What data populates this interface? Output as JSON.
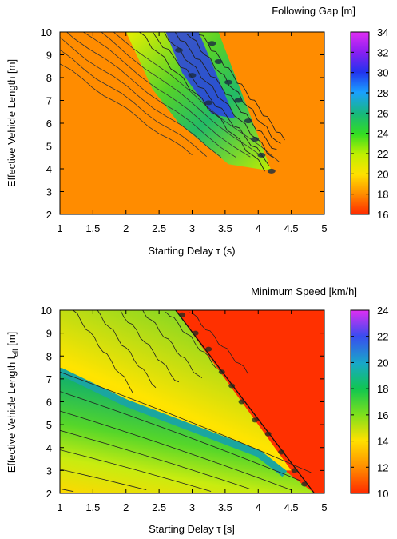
{
  "chart_data": [
    {
      "type": "heatmap",
      "title": "Following Gap [m]",
      "xlabel": "Starting Delay  τ (s)",
      "ylabel": "Effective Vehicle Length [m]",
      "xlim": [
        1,
        5
      ],
      "ylim": [
        2,
        10
      ],
      "xticks": [
        "1",
        "1.5",
        "2",
        "2.5",
        "3",
        "3.5",
        "4",
        "4.5",
        "5"
      ],
      "yticks": [
        "2",
        "3",
        "4",
        "5",
        "6",
        "7",
        "8",
        "9",
        "10"
      ],
      "colorbar": {
        "range": [
          16,
          34
        ],
        "ticks": [
          "16",
          "18",
          "20",
          "22",
          "24",
          "26",
          "28",
          "30",
          "32",
          "34"
        ]
      },
      "background_value": 18.4,
      "region": {
        "description_values": "wedge of higher gap values",
        "vertices_tau_L": [
          [
            2.0,
            10.0
          ],
          [
            3.4,
            10.0
          ],
          [
            4.2,
            3.9
          ],
          [
            3.55,
            4.2
          ],
          [
            2.8,
            6.0
          ],
          [
            2.4,
            7.5
          ]
        ],
        "peak_value": 30.5
      },
      "grid": false,
      "contours": true
    },
    {
      "type": "heatmap",
      "title": "Minimum Speed [km/h]",
      "xlabel": "Starting Delay  τ [s]",
      "ylabel": "Effective Vehicle Length l",
      "ylabel_sub": "eff",
      "ylabel_unit": " [m]",
      "xlim": [
        1,
        5
      ],
      "ylim": [
        2,
        10
      ],
      "xticks": [
        "1",
        "1.5",
        "2",
        "2.5",
        "3",
        "3.5",
        "4",
        "4.5",
        "5"
      ],
      "yticks": [
        "2",
        "3",
        "4",
        "5",
        "6",
        "7",
        "8",
        "9",
        "10"
      ],
      "colorbar": {
        "range": [
          10,
          24
        ],
        "ticks": [
          "10",
          "12",
          "14",
          "16",
          "18",
          "20",
          "22",
          "24"
        ]
      },
      "boundary_tau_L": [
        [
          1.0,
          7.5
        ],
        [
          2.0,
          6.1
        ],
        [
          3.0,
          5.0
        ],
        [
          4.0,
          3.9
        ],
        [
          4.4,
          3.0
        ]
      ],
      "collapse_line_tau_L": [
        [
          2.75,
          10.0
        ],
        [
          4.85,
          2.0
        ]
      ],
      "collapsed_value": 10.2,
      "grid": false,
      "contours": true
    }
  ]
}
